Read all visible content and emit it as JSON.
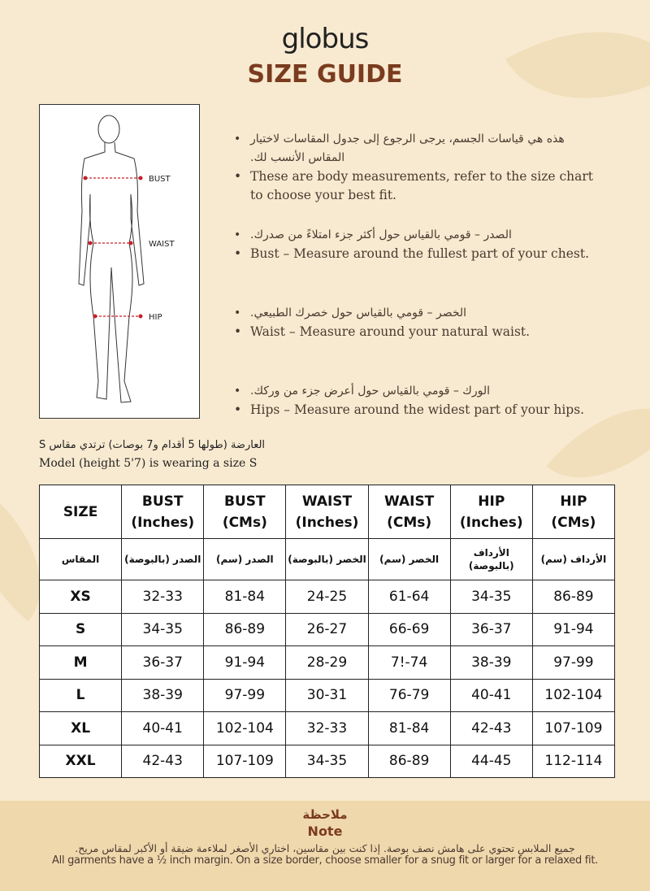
{
  "brand": "globus",
  "title": "SIZE GUIDE",
  "figure": {
    "labels": [
      "BUST",
      "WAIST",
      "HIP"
    ]
  },
  "bullets": [
    {
      "ar": "هذه هي قياسات الجسم، يرجى الرجوع إلى جدول المقاسات لاختيار المقاس الأنسب لك.",
      "en": "These are body measurements, refer to the size chart to choose your best fit."
    },
    {
      "ar": "الصدر – قومي بالقياس حول أكثر جزء امتلاءً من صدرك.",
      "en": "Bust – Measure around the fullest part of your chest."
    },
    {
      "ar": "الخصر – قومي بالقياس حول خصرك الطبيعي.",
      "en": "Waist – Measure around your natural waist."
    },
    {
      "ar": "الورك – قومي بالقياس حول أعرض جزء من وركك.",
      "en": "Hips – Measure around the widest part of your hips."
    }
  ],
  "model": {
    "ar": "العارضة (طولها 5 أقدام و7 بوصات) ترتدي مقاس S",
    "en": "Model (height 5'7) is wearing a size S"
  },
  "table": {
    "headers_en": [
      [
        "SIZE",
        ""
      ],
      [
        "BUST",
        "(Inches)"
      ],
      [
        "BUST",
        "(CMs)"
      ],
      [
        "WAIST",
        "(Inches)"
      ],
      [
        "WAIST",
        "(CMs)"
      ],
      [
        "HIP",
        "(Inches)"
      ],
      [
        "HIP",
        "(CMs)"
      ]
    ],
    "headers_ar": [
      "المقاس",
      "الصدر (بالبوصة)",
      "الصدر (سم)",
      "الخصر (بالبوصة)",
      "الخصر (سم)",
      "الأرداف (بالبوصة)",
      "الأرداف (سم)"
    ],
    "rows": [
      [
        "XS",
        "32-33",
        "81-84",
        "24-25",
        "61-64",
        "34-35",
        "86-89"
      ],
      [
        "S",
        "34-35",
        "86-89",
        "26-27",
        "66-69",
        "36-37",
        "91-94"
      ],
      [
        "M",
        "36-37",
        "91-94",
        "28-29",
        "7!-74",
        "38-39",
        "97-99"
      ],
      [
        "L",
        "38-39",
        "97-99",
        "30-31",
        "76-79",
        "40-41",
        "102-104"
      ],
      [
        "XL",
        "40-41",
        "102-104",
        "32-33",
        "81-84",
        "42-43",
        "107-109"
      ],
      [
        "XXL",
        "42-43",
        "107-109",
        "34-35",
        "86-89",
        "44-45",
        "112-114"
      ]
    ]
  },
  "note": {
    "title_ar": "ملاحظة",
    "title_en": "Note",
    "text_ar": "جميع الملابس تحتوي على هامش نصف بوصة. إذا كنت بين مقاسين، اختاري الأصغر لملاءمة ضيقة أو الأكبر لمقاس مريح.",
    "text_en": "All garments have a ½ inch margin. On a size border, choose smaller for a snug fit or larger for a relaxed fit."
  },
  "colors": {
    "accent": "#7a3b1e",
    "background": "#f8ead0",
    "note_band": "#f0d8ad",
    "marker": "#c8202a"
  }
}
